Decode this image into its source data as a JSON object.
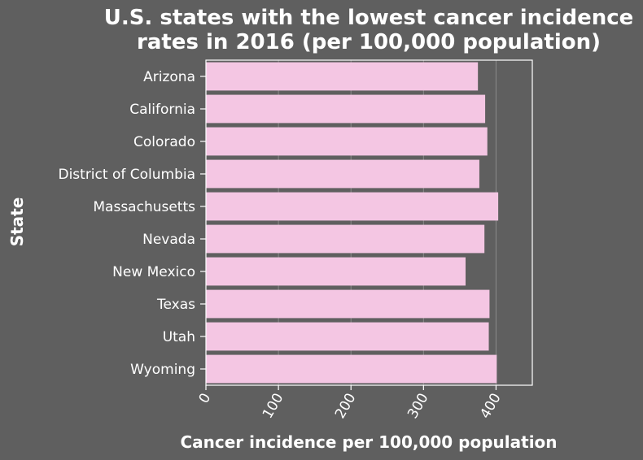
{
  "chart_data": {
    "type": "bar",
    "orientation": "horizontal",
    "title_lines": [
      "U.S. states with the lowest cancer incidence",
      "rates in 2016 (per 100,000 population)"
    ],
    "xlabel": "Cancer incidence per 100,000 population",
    "ylabel": "State",
    "xlim": [
      0,
      450
    ],
    "x_ticks": [
      "0",
      "100",
      "200",
      "300",
      "400"
    ],
    "categories": [
      "Arizona",
      "California",
      "Colorado",
      "District of Columbia",
      "Massachusetts",
      "Nevada",
      "New Mexico",
      "Texas",
      "Utah",
      "Wyoming"
    ],
    "values": [
      375,
      385,
      388,
      377,
      403,
      384,
      358,
      391,
      390,
      401
    ],
    "grid": true,
    "legend": "none",
    "colors": {
      "background": "#5f5f5f",
      "bar": "#f4c6e3",
      "axis": "#ffffff",
      "grid": "#8a8a8a"
    }
  }
}
